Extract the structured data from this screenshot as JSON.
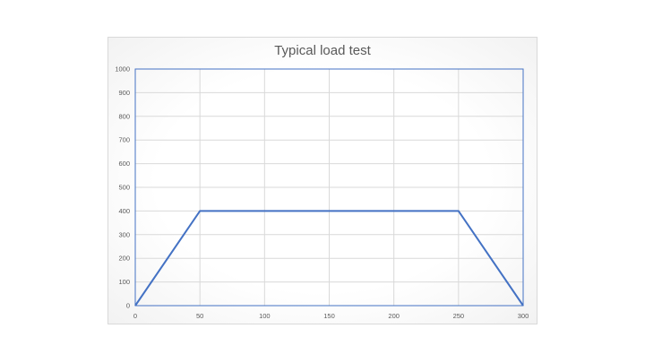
{
  "chart_data": {
    "type": "line",
    "title": "Typical load test",
    "xlabel": "",
    "ylabel": "",
    "x": [
      0,
      50,
      250,
      300
    ],
    "series": [
      {
        "values": [
          0,
          400,
          400,
          0
        ],
        "color": "#4472C4"
      }
    ],
    "xlim": [
      0,
      300
    ],
    "ylim": [
      0,
      1000
    ],
    "xticks": [
      0,
      50,
      100,
      150,
      200,
      250,
      300
    ],
    "yticks": [
      0,
      100,
      200,
      300,
      400,
      500,
      600,
      700,
      800,
      900,
      1000
    ],
    "grid": true,
    "legend": "none",
    "colors": {
      "line": "#4472C4",
      "grid": "#d9d9d9",
      "plot_border": "#4472C4",
      "text": "#595959"
    }
  }
}
